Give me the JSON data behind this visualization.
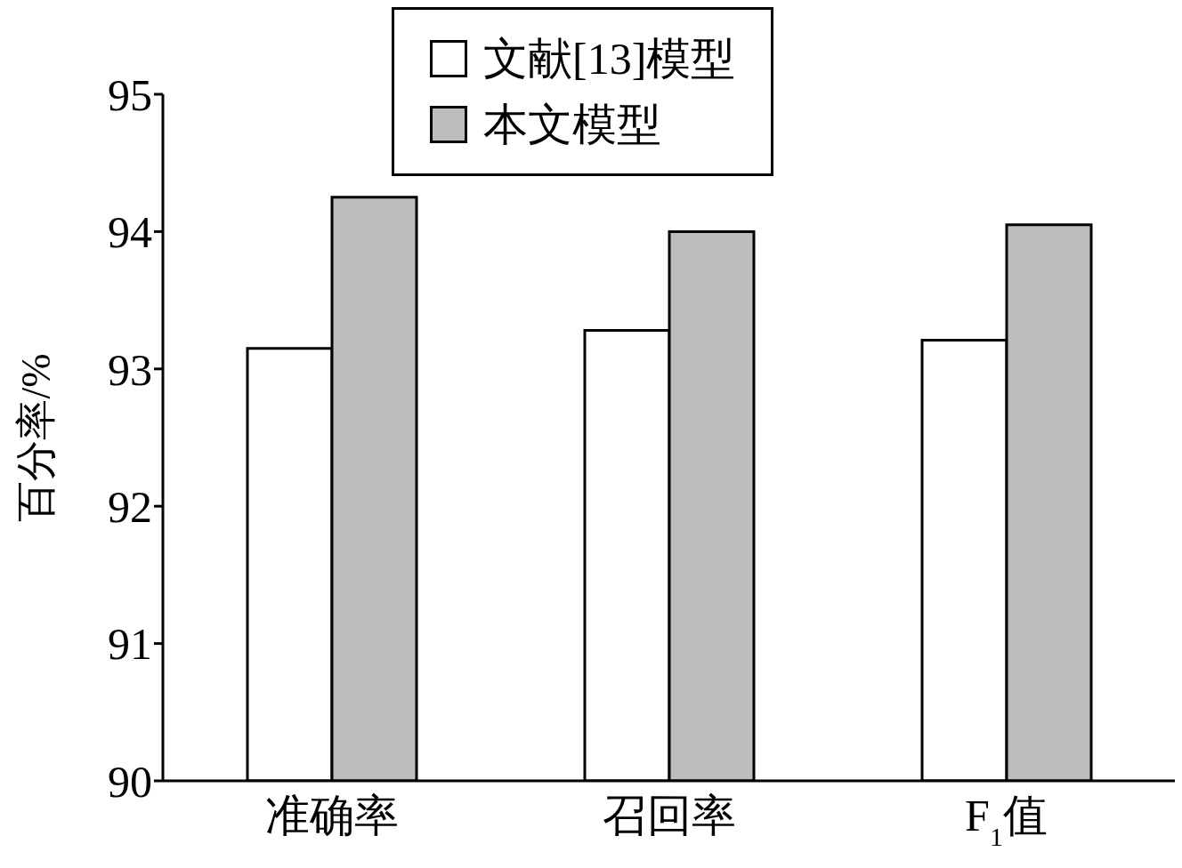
{
  "chart_data": {
    "type": "bar",
    "ylabel": "百分率/%",
    "categories": [
      "准确率",
      "召回率",
      "F$_{1}$值"
    ],
    "series": [
      {
        "name": "文献[13]模型",
        "color": "#ffffff",
        "values": [
          93.15,
          93.28,
          93.21
        ]
      },
      {
        "name": "本文模型",
        "color": "#bdbdbd",
        "values": [
          94.25,
          94.0,
          94.05
        ]
      }
    ],
    "ylim": [
      90,
      95
    ],
    "yticks": [
      90,
      91,
      92,
      93,
      94,
      95
    ],
    "legend": "top"
  }
}
